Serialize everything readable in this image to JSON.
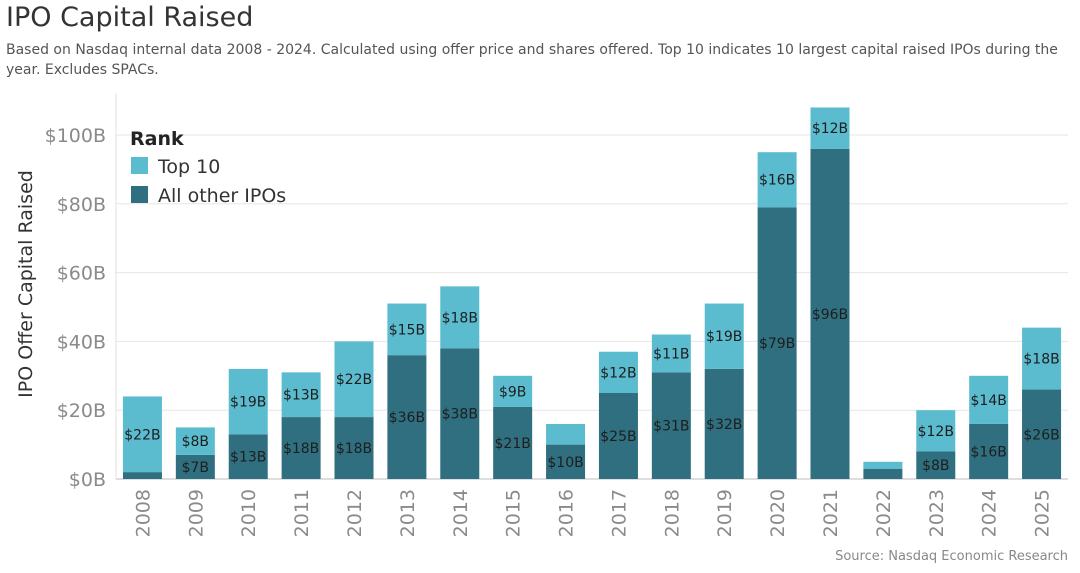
{
  "header": {
    "title": "IPO Capital Raised",
    "subtitle": "Based on Nasdaq internal data 2008 - 2024. Calculated using offer price and shares offered. Top 10 indicates 10 largest capital raised IPOs during the year. Excludes SPACs."
  },
  "footer": {
    "source": "Source: Nasdaq Economic Research"
  },
  "colors": {
    "top10": "#5bbccf",
    "other": "#2f6f7f",
    "grid": "#e6e6e6",
    "axis": "#bdbdbd"
  },
  "chart_data": {
    "type": "bar",
    "stacked": true,
    "categories": [
      "2008",
      "2009",
      "2010",
      "2011",
      "2012",
      "2013",
      "2014",
      "2015",
      "2016",
      "2017",
      "2018",
      "2019",
      "2020",
      "2021",
      "2022",
      "2023",
      "2024",
      "2025"
    ],
    "series": [
      {
        "name": "All other IPOs",
        "values": [
          2,
          7,
          13,
          18,
          18,
          36,
          38,
          21,
          10,
          25,
          31,
          32,
          79,
          96,
          3,
          8,
          16,
          26
        ],
        "labels": [
          "",
          "$7B",
          "$13B",
          "$18B",
          "$18B",
          "$36B",
          "$38B",
          "$21B",
          "$10B",
          "$25B",
          "$31B",
          "$32B",
          "$79B",
          "$96B",
          "",
          "$8B",
          "$16B",
          "$26B"
        ]
      },
      {
        "name": "Top 10",
        "values": [
          22,
          8,
          19,
          13,
          22,
          15,
          18,
          9,
          6,
          12,
          11,
          19,
          16,
          12,
          2,
          12,
          14,
          18
        ],
        "labels": [
          "$22B",
          "$8B",
          "$19B",
          "$13B",
          "$22B",
          "$15B",
          "$18B",
          "$9B",
          "",
          "$12B",
          "$11B",
          "$19B",
          "$16B",
          "$12B",
          "",
          "$12B",
          "$14B",
          "$18B"
        ]
      }
    ],
    "ylabel": "IPO Offer Capital Raised",
    "yticks": [
      0,
      20,
      40,
      60,
      80,
      100
    ],
    "ytick_labels": [
      "$0B",
      "$20B",
      "$40B",
      "$60B",
      "$80B",
      "$100B"
    ],
    "ylim": [
      0,
      110
    ],
    "grid": true,
    "legend": {
      "title": "Rank",
      "position": "top-left",
      "items": [
        "Top 10",
        "All other IPOs"
      ]
    }
  }
}
